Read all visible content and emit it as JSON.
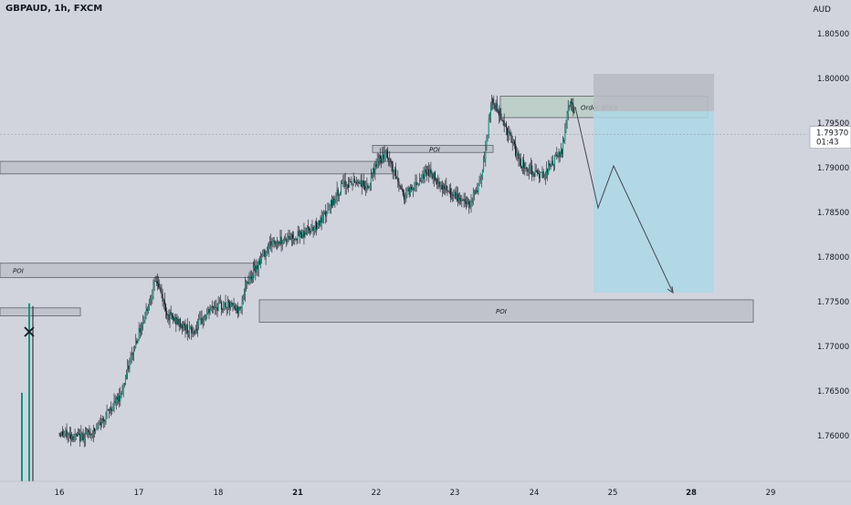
{
  "symbol_title": "GBPAUD, 1h, FXCM",
  "currency": "AUD",
  "price_axis": {
    "ticks": [
      "1.80500",
      "1.80000",
      "1.79500",
      "1.79000",
      "1.78500",
      "1.78000",
      "1.77500",
      "1.77000",
      "1.76500",
      "1.76000"
    ],
    "range": [
      1.7565,
      1.8075
    ]
  },
  "time_axis": {
    "ticks": [
      {
        "label": "16",
        "bold": false
      },
      {
        "label": "17",
        "bold": false
      },
      {
        "label": "18",
        "bold": false
      },
      {
        "label": "21",
        "bold": true
      },
      {
        "label": "22",
        "bold": false
      },
      {
        "label": "23",
        "bold": false
      },
      {
        "label": "24",
        "bold": false
      },
      {
        "label": "25",
        "bold": false
      },
      {
        "label": "28",
        "bold": true
      },
      {
        "label": "29",
        "bold": false
      }
    ]
  },
  "current_price": {
    "value": "1.79370",
    "countdown": "01:43",
    "price": 1.7937
  },
  "zones": [
    {
      "label": "POI",
      "top": 1.7793,
      "bottom": 1.7777
    },
    {
      "label": "POI",
      "top": 1.7752,
      "bottom": 1.7727
    },
    {
      "label": "",
      "top": 1.7907,
      "bottom": 1.7893
    },
    {
      "label": "",
      "top": 1.7743,
      "bottom": 1.7734
    },
    {
      "label": "POI",
      "top": 1.7925,
      "bottom": 1.7917
    },
    {
      "label": "Order Block",
      "top": 1.798,
      "bottom": 1.7956
    }
  ],
  "trade_box": {
    "entry": 1.7963,
    "stop": 1.8005,
    "target": 1.776
  },
  "projection": [
    1.7968,
    1.7855,
    1.7902,
    1.776
  ],
  "colors": {
    "up": "#089981",
    "down": "#131722",
    "background": "#d1d4dc",
    "profit": "#add8e6",
    "loss": "#b8bbc3"
  }
}
